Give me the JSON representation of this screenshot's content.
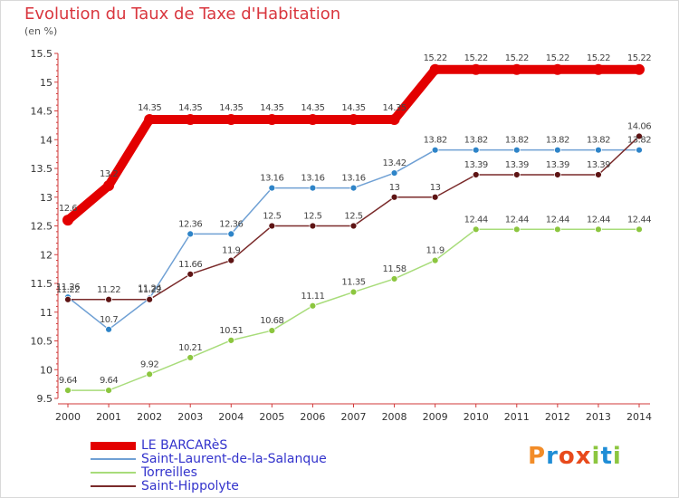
{
  "title": "Evolution du Taux de Taxe d'Habitation",
  "unit_label": "(en %)",
  "logo_text": "Proxiti",
  "chart_data": {
    "type": "line",
    "title": "Evolution du Taux de Taxe d'Habitation",
    "ylabel": "(en %)",
    "xlabel": "",
    "ylim": [
      9.5,
      15.5
    ],
    "yticks": [
      9.5,
      10,
      10.5,
      11,
      11.5,
      12,
      12.5,
      13,
      13.5,
      14,
      14.5,
      15,
      15.5
    ],
    "grid": false,
    "legend_position": "bottom-left",
    "x": [
      "2000",
      "2001",
      "2002",
      "2003",
      "2004",
      "2005",
      "2006",
      "2007",
      "2008",
      "2009",
      "2010",
      "2011",
      "2012",
      "2013",
      "2014"
    ],
    "series": [
      {
        "name": "LE BARCARèS",
        "color": "#e30000",
        "values": [
          12.6,
          13.2,
          14.35,
          14.35,
          14.35,
          14.35,
          14.35,
          14.35,
          14.35,
          15.22,
          15.22,
          15.22,
          15.22,
          15.22,
          15.22
        ],
        "labels": [
          "12.6",
          "13.2",
          "14.35",
          "14.35",
          "14.35",
          "14.35",
          "14.35",
          "14.35",
          "14.35",
          "15.22",
          "15.22",
          "15.22",
          "15.22",
          "15.22",
          "15.22"
        ]
      },
      {
        "name": "Saint-Laurent-de-la-Salanque",
        "color": "#6fa0d4",
        "marker_color": "#2e84c8",
        "values": [
          11.26,
          10.7,
          11.24,
          12.36,
          12.36,
          13.16,
          13.16,
          13.16,
          13.42,
          13.82,
          13.82,
          13.82,
          13.82,
          13.82,
          13.82
        ],
        "labels": [
          "11.26",
          "10.7",
          "11.24",
          "12.36",
          "12.36",
          "13.16",
          "13.16",
          "13.16",
          "13.42",
          "13.82",
          "13.82",
          "13.82",
          "13.82",
          "13.82",
          "13.82"
        ]
      },
      {
        "name": "Torreilles",
        "color": "#a8dc7a",
        "marker_color": "#8cc63f",
        "values": [
          9.64,
          9.64,
          9.92,
          10.21,
          10.51,
          10.68,
          11.11,
          11.35,
          11.58,
          11.9,
          12.44,
          12.44,
          12.44,
          12.44,
          12.44
        ],
        "labels": [
          "9.64",
          "9.64",
          "9.92",
          "10.21",
          "10.51",
          "10.68",
          "11.11",
          "11.35",
          "11.58",
          "11.9",
          "12.44",
          "12.44",
          "12.44",
          "12.44",
          "12.44"
        ]
      },
      {
        "name": "Saint-Hippolyte",
        "color": "#7a2a2a",
        "marker_color": "#5e1414",
        "values": [
          11.22,
          11.22,
          11.22,
          11.66,
          11.9,
          12.5,
          12.5,
          12.5,
          13,
          13,
          13.39,
          13.39,
          13.39,
          13.39,
          14.06
        ],
        "labels": [
          "11.22",
          "11.22",
          "11.22",
          "11.66",
          "11.9",
          "12.5",
          "12.5",
          "12.5",
          "13",
          "13",
          "13.39",
          "13.39",
          "13.39",
          "13.39",
          "14.06"
        ]
      }
    ]
  }
}
